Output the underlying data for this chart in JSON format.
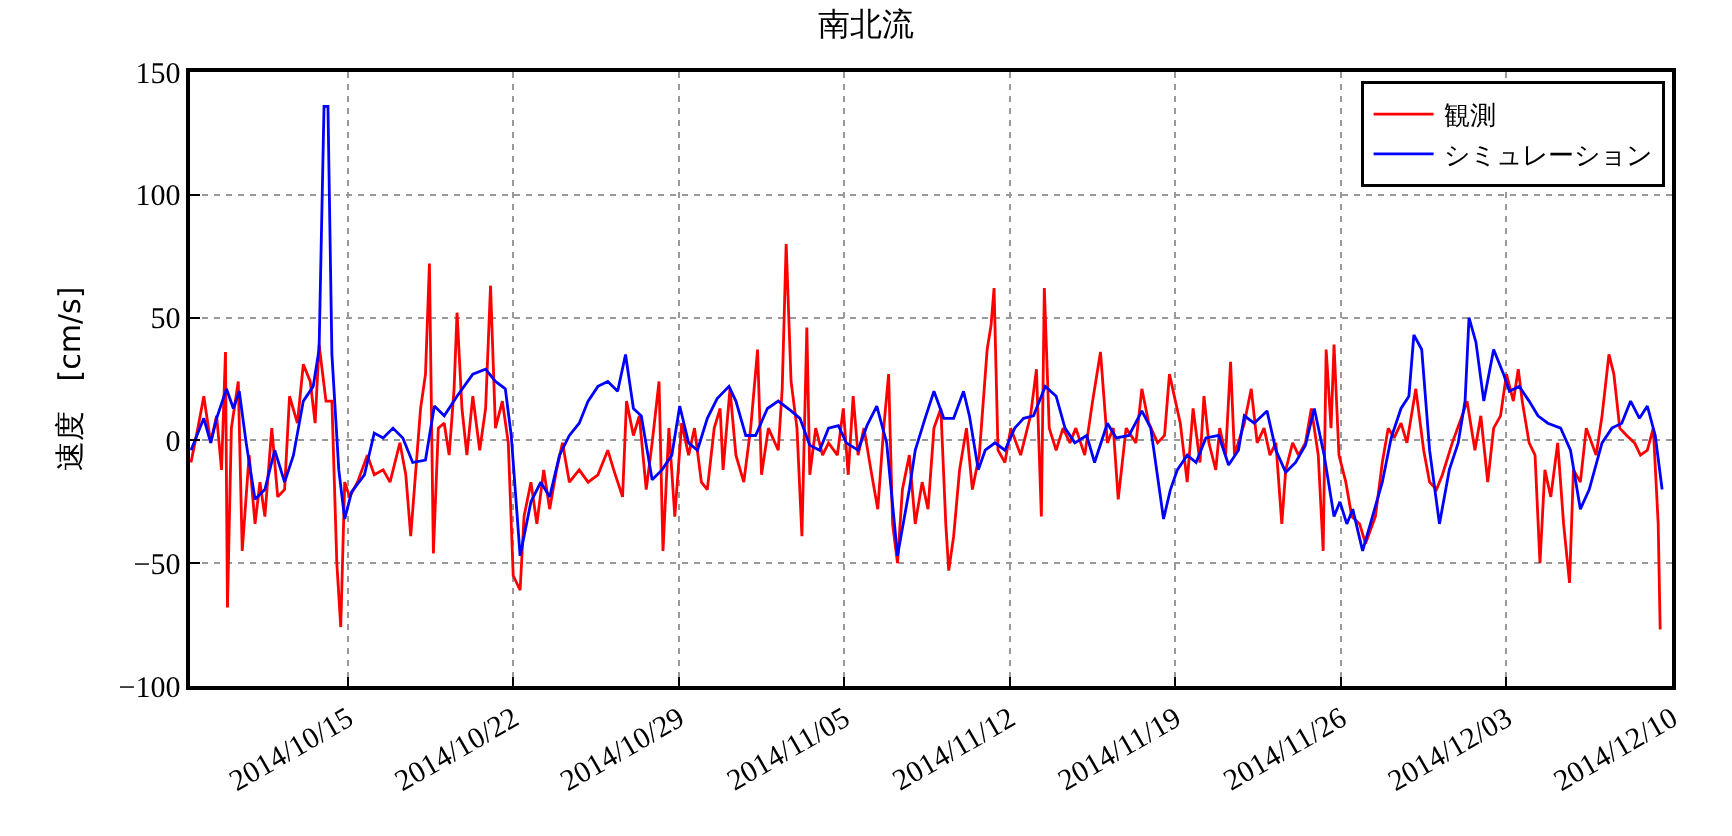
{
  "chart_data": {
    "type": "line",
    "title": "南北流",
    "ylabel": "速度　[cm/s]",
    "xlim": [
      "2014-10-08T08:00",
      "2014-12-10T00:00"
    ],
    "xticks": [
      {
        "value": "2014-10-15",
        "label": "2014/10/15"
      },
      {
        "value": "2014-10-22",
        "label": "2014/10/22"
      },
      {
        "value": "2014-10-29",
        "label": "2014/10/29"
      },
      {
        "value": "2014-11-05",
        "label": "2014/11/05"
      },
      {
        "value": "2014-11-12",
        "label": "2014/11/12"
      },
      {
        "value": "2014-11-19",
        "label": "2014/11/19"
      },
      {
        "value": "2014-11-26",
        "label": "2014/11/26"
      },
      {
        "value": "2014-12-03",
        "label": "2014/12/03"
      },
      {
        "value": "2014-12-10",
        "label": "2014/12/10"
      }
    ],
    "ylim": [
      -100,
      150
    ],
    "yticks": [
      -100,
      -50,
      0,
      50,
      100,
      150
    ],
    "grid": true,
    "legend": "top right",
    "marker": "none",
    "line_style": "solid",
    "series": [
      {
        "name": "観測",
        "color": "#ff0000",
        "x": [
          "2014-10-08T09:00",
          "2014-10-08T16:00",
          "2014-10-08T22:00",
          "2014-10-09T05:00",
          "2014-10-09T11:00",
          "2014-10-09T16:00",
          "2014-10-09T20:00",
          "2014-10-09T22:00",
          "2014-10-10T02:00",
          "2014-10-10T09:00",
          "2014-10-10T13:00",
          "2014-10-10T20:00",
          "2014-10-11T02:00",
          "2014-10-11T07:00",
          "2014-10-11T12:00",
          "2014-10-11T19:00",
          "2014-10-12T01:00",
          "2014-10-12T08:00",
          "2014-10-12T13:00",
          "2014-10-12T21:00",
          "2014-10-13T03:00",
          "2014-10-13T10:00",
          "2014-10-13T15:00",
          "2014-10-13T19:00",
          "2014-10-14T02:00",
          "2014-10-14T08:00",
          "2014-10-14T13:00",
          "2014-10-14T17:00",
          "2014-10-14T21:00",
          "2014-10-15T02:00",
          "2014-10-15T10:00",
          "2014-10-15T20:00",
          "2014-10-16T03:00",
          "2014-10-16T12:00",
          "2014-10-16T19:00",
          "2014-10-17T05:00",
          "2014-10-17T11:00",
          "2014-10-17T16:00",
          "2014-10-18T02:00",
          "2014-10-18T07:00",
          "2014-10-18T11:00",
          "2014-10-18T15:00",
          "2014-10-18T20:00",
          "2014-10-19T02:00",
          "2014-10-19T07:00",
          "2014-10-19T12:00",
          "2014-10-19T15:00",
          "2014-10-19T20:00",
          "2014-10-20T01:00",
          "2014-10-20T07:00",
          "2014-10-20T14:00",
          "2014-10-20T20:00",
          "2014-10-21T01:00",
          "2014-10-21T06:00",
          "2014-10-21T13:00",
          "2014-10-21T19:00",
          "2014-10-22T00:00",
          "2014-10-22T07:00",
          "2014-10-22T11:00",
          "2014-10-22T18:00",
          "2014-10-23T00:00",
          "2014-10-23T07:00",
          "2014-10-23T13:00",
          "2014-10-23T20:00",
          "2014-10-24T02:00",
          "2014-10-24T09:00",
          "2014-10-24T19:00",
          "2014-10-25T04:00",
          "2014-10-25T14:00",
          "2014-10-26T00:00",
          "2014-10-26T06:00",
          "2014-10-26T15:00",
          "2014-10-26T19:00",
          "2014-10-27T02:00",
          "2014-10-27T08:00",
          "2014-10-27T15:00",
          "2014-10-27T21:00",
          "2014-10-28T04:00",
          "2014-10-28T08:00",
          "2014-10-28T14:00",
          "2014-10-28T20:00",
          "2014-10-29T03:00",
          "2014-10-29T10:00",
          "2014-10-29T16:00",
          "2014-10-29T23:00",
          "2014-10-30T05:00",
          "2014-10-30T12:00",
          "2014-10-30T18:00",
          "2014-10-30T21:00",
          "2014-10-31T04:00",
          "2014-10-31T10:00",
          "2014-10-31T18:00",
          "2014-11-01T01:00",
          "2014-11-01T08:00",
          "2014-11-01T12:00",
          "2014-11-01T19:00",
          "2014-11-02T05:00",
          "2014-11-02T09:00",
          "2014-11-02T13:00",
          "2014-11-02T18:00",
          "2014-11-03T00:00",
          "2014-11-03T05:00",
          "2014-11-03T10:00",
          "2014-11-03T13:00",
          "2014-11-03T19:00",
          "2014-11-04T02:00",
          "2014-11-04T08:00",
          "2014-11-04T17:00",
          "2014-11-04T23:00",
          "2014-11-05T04:00",
          "2014-11-05T09:00",
          "2014-11-05T14:00",
          "2014-11-05T20:00",
          "2014-11-06T03:00",
          "2014-11-06T10:00",
          "2014-11-06T16:00",
          "2014-11-06T21:00",
          "2014-11-07T01:00",
          "2014-11-07T06:00",
          "2014-11-07T11:00",
          "2014-11-07T18:00",
          "2014-11-08T00:00",
          "2014-11-08T07:00",
          "2014-11-08T13:00",
          "2014-11-08T19:00",
          "2014-11-09T02:00",
          "2014-11-09T07:00",
          "2014-11-09T10:00",
          "2014-11-09T15:00",
          "2014-11-09T21:00",
          "2014-11-10T04:00",
          "2014-11-10T10:00",
          "2014-11-10T17:00",
          "2014-11-11T01:00",
          "2014-11-11T05:00",
          "2014-11-11T08:00",
          "2014-11-11T12:00",
          "2014-11-11T19:00",
          "2014-11-12T01:00",
          "2014-11-12T11:00",
          "2014-11-12T21:00",
          "2014-11-13T03:00",
          "2014-11-13T08:00",
          "2014-11-13T11:00",
          "2014-11-13T16:00",
          "2014-11-13T23:00",
          "2014-11-14T06:00",
          "2014-11-14T13:00",
          "2014-11-14T19:00",
          "2014-11-15T04:00",
          "2014-11-15T12:00",
          "2014-11-15T20:00",
          "2014-11-16T03:00",
          "2014-11-16T09:00",
          "2014-11-16T14:00",
          "2014-11-16T22:00",
          "2014-11-17T08:00",
          "2014-11-17T14:00",
          "2014-11-17T21:00",
          "2014-11-18T06:00",
          "2014-11-18T13:00",
          "2014-11-18T18:00",
          "2014-11-19T05:00",
          "2014-11-19T12:00",
          "2014-11-19T18:00",
          "2014-11-20T01:00",
          "2014-11-20T05:00",
          "2014-11-20T10:00",
          "2014-11-20T17:00",
          "2014-11-20T21:00",
          "2014-11-21T03:00",
          "2014-11-21T08:00",
          "2014-11-21T12:00",
          "2014-11-21T22:00",
          "2014-11-22T05:00",
          "2014-11-22T11:00",
          "2014-11-22T18:00",
          "2014-11-23T00:00",
          "2014-11-23T06:00",
          "2014-11-23T12:00",
          "2014-11-23T16:00",
          "2014-11-23T23:00",
          "2014-11-24T05:00",
          "2014-11-24T12:00",
          "2014-11-24T18:00",
          "2014-11-25T01:00",
          "2014-11-25T06:00",
          "2014-11-25T09:00",
          "2014-11-25T14:00",
          "2014-11-25T17:00",
          "2014-11-25T22:00",
          "2014-11-26T05:00",
          "2014-11-26T11:00",
          "2014-11-26T19:00",
          "2014-11-27T01:00",
          "2014-11-27T11:00",
          "2014-11-27T18:00",
          "2014-11-28T00:00",
          "2014-11-28T06:00",
          "2014-11-28T13:00",
          "2014-11-28T19:00",
          "2014-11-29T04:00",
          "2014-11-29T12:00",
          "2014-11-29T18:00",
          "2014-11-30T01:00",
          "2014-11-30T07:00",
          "2014-11-30T17:00",
          "2014-12-01T03:00",
          "2014-12-01T08:00",
          "2014-12-01T16:00",
          "2014-12-01T22:00",
          "2014-12-02T05:00",
          "2014-12-02T11:00",
          "2014-12-02T18:00",
          "2014-12-03T00:00",
          "2014-12-03T07:00",
          "2014-12-03T12:00",
          "2014-12-03T16:00",
          "2014-12-03T23:00",
          "2014-12-04T05:00",
          "2014-12-04T10:00",
          "2014-12-04T15:00",
          "2014-12-04T21:00",
          "2014-12-05T04:00",
          "2014-12-05T10:00",
          "2014-12-05T16:00",
          "2014-12-05T20:00",
          "2014-12-06T03:00",
          "2014-12-06T09:00",
          "2014-12-06T19:00",
          "2014-12-07T01:00",
          "2014-12-07T08:00",
          "2014-12-07T13:00",
          "2014-12-07T19:00",
          "2014-12-08T02:00",
          "2014-12-08T10:00",
          "2014-12-08T16:00",
          "2014-12-08T23:00",
          "2014-12-09T05:00",
          "2014-12-09T10:00",
          "2014-12-09T12:00"
        ],
        "values": [
          -9,
          5,
          18,
          -1,
          10,
          -12,
          36,
          -68,
          5,
          24,
          -45,
          -6,
          -34,
          -17,
          -31,
          5,
          -23,
          -20,
          18,
          7,
          31,
          24,
          7,
          39,
          16,
          16,
          -50,
          -76,
          -17,
          -23,
          -17,
          -6,
          -14,
          -12,
          -17,
          -1,
          -14,
          -39,
          13,
          27,
          72,
          -46,
          5,
          7,
          -6,
          21,
          52,
          13,
          -6,
          18,
          -4,
          13,
          63,
          5,
          16,
          -1,
          -55,
          -61,
          -31,
          -17,
          -34,
          -12,
          -28,
          -12,
          -1,
          -17,
          -12,
          -17,
          -14,
          -4,
          -12,
          -23,
          16,
          2,
          10,
          -20,
          -1,
          24,
          -45,
          5,
          -31,
          7,
          -6,
          5,
          -17,
          -20,
          5,
          13,
          -12,
          21,
          -6,
          -17,
          5,
          37,
          -14,
          5,
          -4,
          21,
          80,
          24,
          5,
          -39,
          46,
          -14,
          5,
          -6,
          -1,
          -6,
          13,
          -14,
          18,
          -6,
          5,
          -12,
          -28,
          5,
          27,
          -34,
          -50,
          -20,
          -6,
          -34,
          -17,
          -28,
          5,
          13,
          -34,
          -53,
          -39,
          -12,
          5,
          -20,
          -6,
          37,
          47,
          62,
          -4,
          -9,
          5,
          -6,
          10,
          29,
          -31,
          62,
          5,
          -4,
          5,
          -1,
          5,
          -6,
          16,
          36,
          -1,
          5,
          -24,
          5,
          -1,
          21,
          7,
          -1,
          2,
          27,
          7,
          -17,
          13,
          -9,
          18,
          -1,
          -12,
          5,
          -6,
          32,
          -6,
          7,
          21,
          -1,
          5,
          -6,
          -1,
          -34,
          -12,
          -1,
          -6,
          -1,
          13,
          -6,
          -45,
          37,
          5,
          39,
          -6,
          -17,
          -31,
          -34,
          -42,
          -31,
          -9,
          5,
          1,
          7,
          -1,
          21,
          -4,
          -17,
          -20,
          -14,
          -1,
          10,
          16,
          -4,
          10,
          -17,
          5,
          10,
          27,
          16,
          29,
          16,
          -1,
          -6,
          -50,
          -12,
          -23,
          -1,
          -34,
          -58,
          -12,
          -17,
          5,
          -6,
          10,
          35,
          27,
          5,
          2,
          -1,
          -6,
          -4,
          5,
          -34,
          -77
        ]
      },
      {
        "name": "シミュレーション",
        "color": "#0000ff",
        "x": [
          "2014-10-08T09:00",
          "2014-10-08T22:00",
          "2014-10-09T05:00",
          "2014-10-09T11:00",
          "2014-10-09T21:00",
          "2014-10-10T04:00",
          "2014-10-10T10:00",
          "2014-10-10T17:00",
          "2014-10-11T02:00",
          "2014-10-11T12:00",
          "2014-10-11T22:00",
          "2014-10-12T08:00",
          "2014-10-12T17:00",
          "2014-10-13T03:00",
          "2014-10-13T13:00",
          "2014-10-13T19:00",
          "2014-10-14T00:00",
          "2014-10-14T04:00",
          "2014-10-14T08:00",
          "2014-10-14T15:00",
          "2014-10-14T21:00",
          "2014-10-15T04:00",
          "2014-10-15T17:00",
          "2014-10-16T03:00",
          "2014-10-16T12:00",
          "2014-10-16T22:00",
          "2014-10-17T08:00",
          "2014-10-17T18:00",
          "2014-10-18T07:00",
          "2014-10-18T16:00",
          "2014-10-19T02:00",
          "2014-10-19T15:00",
          "2014-10-20T07:00",
          "2014-10-20T20:00",
          "2014-10-21T06:00",
          "2014-10-21T16:00",
          "2014-10-21T22:00",
          "2014-10-22T07:00",
          "2014-10-22T18:00",
          "2014-10-23T04:00",
          "2014-10-23T13:00",
          "2014-10-23T23:00",
          "2014-10-24T09:00",
          "2014-10-24T19:00",
          "2014-10-25T04:00",
          "2014-10-25T14:00",
          "2014-10-26T00:00",
          "2014-10-26T10:00",
          "2014-10-26T18:00",
          "2014-10-27T02:00",
          "2014-10-27T10:00",
          "2014-10-27T21:00",
          "2014-10-28T07:00",
          "2014-10-28T17:00",
          "2014-10-29T01:00",
          "2014-10-29T10:00",
          "2014-10-29T19:00",
          "2014-10-30T05:00",
          "2014-10-30T15:00",
          "2014-10-31T03:00",
          "2014-10-31T10:00",
          "2014-10-31T20:00",
          "2014-11-01T06:00",
          "2014-11-01T18:00",
          "2014-11-02T05:00",
          "2014-11-02T18:00",
          "2014-11-03T03:00",
          "2014-11-03T13:00",
          "2014-11-03T23:00",
          "2014-11-04T08:00",
          "2014-11-04T18:00",
          "2014-11-05T02:00",
          "2014-11-05T14:00",
          "2014-11-05T23:00",
          "2014-11-06T09:00",
          "2014-11-06T19:00",
          "2014-11-07T06:00",
          "2014-11-07T18:00",
          "2014-11-08T00:00",
          "2014-11-08T10:00",
          "2014-11-08T19:00",
          "2014-11-09T05:00",
          "2014-11-09T15:00",
          "2014-11-10T01:00",
          "2014-11-10T07:00",
          "2014-11-10T16:00",
          "2014-11-10T23:00",
          "2014-11-11T09:00",
          "2014-11-11T19:00",
          "2014-11-12T05:00",
          "2014-11-12T14:00",
          "2014-11-13T00:00",
          "2014-11-13T12:00",
          "2014-11-13T23:00",
          "2014-11-14T08:00",
          "2014-11-14T18:00",
          "2014-11-15T06:00",
          "2014-11-15T14:00",
          "2014-11-16T03:00",
          "2014-11-16T12:00",
          "2014-11-17T01:00",
          "2014-11-17T14:00",
          "2014-11-17T23:00",
          "2014-11-18T12:00",
          "2014-11-18T19:00",
          "2014-11-19T02:00",
          "2014-11-19T12:00",
          "2014-11-19T21:00",
          "2014-11-20T07:00",
          "2014-11-20T20:00",
          "2014-11-21T06:00",
          "2014-11-21T16:00",
          "2014-11-21T22:00",
          "2014-11-22T08:00",
          "2014-11-22T21:00",
          "2014-11-23T06:00",
          "2014-11-23T16:00",
          "2014-11-24T02:00",
          "2014-11-24T12:00",
          "2014-11-24T21:00",
          "2014-11-25T07:00",
          "2014-11-25T17:00",
          "2014-11-25T23:00",
          "2014-11-26T06:00",
          "2014-11-26T12:00",
          "2014-11-26T22:00",
          "2014-11-27T08:00",
          "2014-11-27T18:00",
          "2014-11-28T03:00",
          "2014-11-28T13:00",
          "2014-11-28T21:00",
          "2014-11-29T02:00",
          "2014-11-29T10:00",
          "2014-11-29T18:00",
          "2014-11-30T04:00",
          "2014-11-30T14:00",
          "2014-11-30T23:00",
          "2014-12-01T06:00",
          "2014-12-01T10:00",
          "2014-12-01T17:00",
          "2014-12-02T01:00",
          "2014-12-02T11:00",
          "2014-12-02T21:00",
          "2014-12-03T03:00",
          "2014-12-03T13:00",
          "2014-12-03T23:00",
          "2014-12-04T08:00",
          "2014-12-04T18:00",
          "2014-12-05T07:00",
          "2014-12-05T17:00",
          "2014-12-06T03:00",
          "2014-12-06T12:00",
          "2014-12-07T01:00",
          "2014-12-07T11:00",
          "2014-12-07T21:00",
          "2014-12-08T06:00",
          "2014-12-08T15:00",
          "2014-12-08T23:00",
          "2014-12-09T07:00",
          "2014-12-09T14:00"
        ],
        "values": [
          -4,
          9,
          -1,
          9,
          21,
          13,
          20,
          -1,
          -24,
          -20,
          -4,
          -17,
          -6,
          16,
          22,
          37,
          136,
          136,
          35,
          -12,
          -32,
          -21,
          -14,
          3,
          1,
          5,
          1,
          -9,
          -8,
          14,
          10,
          18,
          27,
          29,
          24,
          21,
          2,
          -47,
          -25,
          -17,
          -23,
          -6,
          2,
          7,
          16,
          22,
          24,
          20,
          35,
          13,
          10,
          -16,
          -12,
          -6,
          14,
          -1,
          -4,
          9,
          17,
          22,
          16,
          2,
          2,
          13,
          16,
          12,
          9,
          -2,
          -4,
          5,
          6,
          -1,
          -4,
          6,
          14,
          -1,
          -47,
          -20,
          -4,
          9,
          20,
          9,
          9,
          20,
          10,
          -12,
          -4,
          -1,
          -4,
          5,
          9,
          10,
          22,
          18,
          5,
          -1,
          2,
          -9,
          7,
          1,
          2,
          12,
          5,
          -32,
          -20,
          -12,
          -6,
          -9,
          1,
          2,
          -10,
          -4,
          10,
          7,
          12,
          -4,
          -13,
          -9,
          -2,
          13,
          -6,
          -31,
          -25,
          -34,
          -28,
          -45,
          -31,
          -17,
          1,
          13,
          18,
          43,
          37,
          -4,
          -34,
          -12,
          -1,
          16,
          50,
          40,
          16,
          37,
          27,
          20,
          22,
          16,
          10,
          7,
          5,
          -4,
          -28,
          -20,
          -1,
          5,
          7,
          16,
          9,
          14,
          2,
          -20
        ]
      }
    ]
  }
}
